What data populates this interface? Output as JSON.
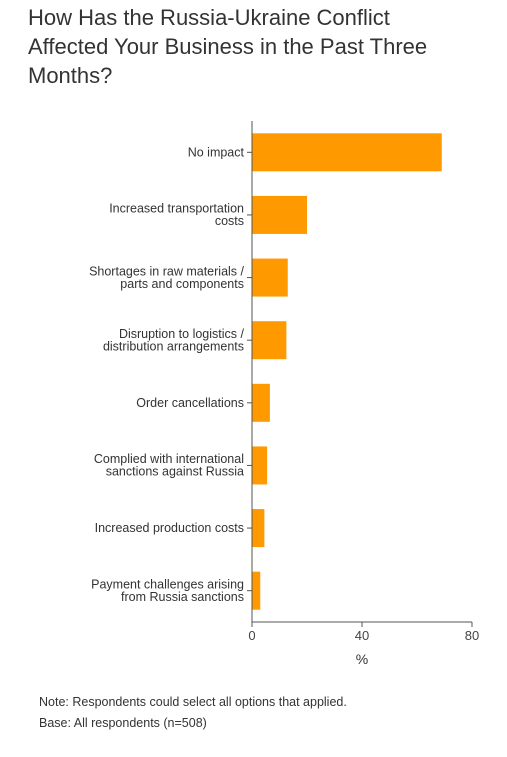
{
  "chart_data": {
    "type": "bar",
    "orientation": "horizontal",
    "title": "How Has the Russia-Ukraine Conflict Affected Your Business in the Past Three Months?",
    "xlabel": "%",
    "ylabel": "",
    "xlim": [
      0,
      80
    ],
    "xticks": [
      "0",
      "40",
      "80"
    ],
    "categories": [
      [
        "No impact"
      ],
      [
        "Increased transportation",
        "costs"
      ],
      [
        "Shortages in raw materials /",
        "parts and components"
      ],
      [
        "Disruption to logistics /",
        "distribution arrangements"
      ],
      [
        "Order cancellations"
      ],
      [
        "Complied with international",
        "sanctions against Russia"
      ],
      [
        "Increased production costs"
      ],
      [
        "Payment challenges arising",
        "from Russia sanctions"
      ]
    ],
    "values": [
      69,
      20,
      13,
      12.5,
      6.5,
      5.5,
      4.5,
      3
    ],
    "bar_color": "#ff9900",
    "grid": false
  },
  "notes": {
    "note": "Note: Respondents could select all options that applied.",
    "base": "Base: All respondents (n=508)"
  }
}
